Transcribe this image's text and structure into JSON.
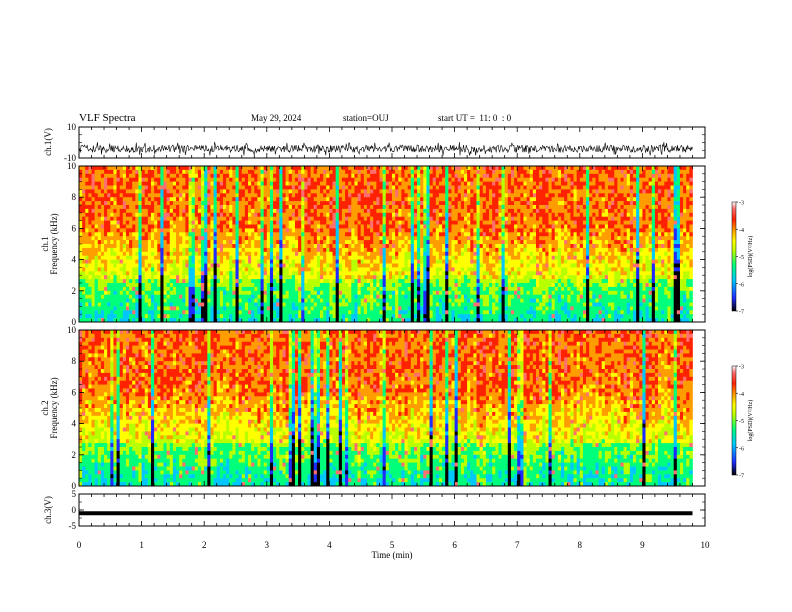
{
  "header": {
    "title": "VLF Spectra",
    "date": "May 29, 2024",
    "station": "station=OUJ",
    "start": "start UT =  11: 0  : 0"
  },
  "colormap": [
    "#000000",
    "#1f2cff",
    "#00c8ff",
    "#00ff7a",
    "#b8ff00",
    "#ffff00",
    "#ff9d00",
    "#ff2200",
    "#ff6f6f",
    "#ffffff"
  ],
  "chart_data": [
    {
      "type": "line",
      "name": "ch1-waveform",
      "ylabel": "ch.1(V)",
      "ylim": [
        -10,
        10
      ],
      "yticks": [
        "10",
        "-10"
      ],
      "x_range_min": [
        0,
        9.8
      ],
      "y_range_approx": [
        -8,
        0
      ]
    },
    {
      "type": "heatmap",
      "name": "ch1-spectrogram",
      "ylabel": "ch.1\nFrequency (kHz)",
      "ylabel_line1": "ch.1",
      "ylabel_line2": "Frequency (kHz)",
      "ylim": [
        0,
        10
      ],
      "yticks": [
        "0",
        "2",
        "4",
        "6",
        "8",
        "10"
      ],
      "x_range_min": [
        0,
        9.8
      ],
      "colorbar": {
        "label": "log(PSD)(V²/Hz)",
        "ticks": [
          "-3",
          "-4",
          "-5",
          "-6",
          "-7"
        ],
        "range": [
          -7,
          -3
        ]
      }
    },
    {
      "type": "heatmap",
      "name": "ch2-spectrogram",
      "ylabel": "ch.2\nFrequency (kHz)",
      "ylabel_line1": "ch.2",
      "ylabel_line2": "Frequency (kHz)",
      "ylim": [
        0,
        10
      ],
      "yticks": [
        "0",
        "2",
        "4",
        "6",
        "8",
        "10"
      ],
      "x_range_min": [
        0,
        9.8
      ],
      "colorbar": {
        "label": "log(PSD)(V²/Hz)",
        "ticks": [
          "-3",
          "-4",
          "-5",
          "-6",
          "-7"
        ],
        "range": [
          -7,
          -3
        ]
      }
    },
    {
      "type": "line",
      "name": "ch3-waveform",
      "ylabel": "ch.3(V)",
      "ylim": [
        -5,
        5
      ],
      "yticks": [
        "5",
        "0",
        "-5"
      ],
      "x_range_min": [
        0,
        9.8
      ],
      "y_value": -1
    }
  ],
  "xaxis": {
    "label": "Time (min)",
    "ticks": [
      "0",
      "1",
      "2",
      "3",
      "4",
      "5",
      "6",
      "7",
      "8",
      "9",
      "10"
    ],
    "range": [
      0,
      10
    ]
  }
}
